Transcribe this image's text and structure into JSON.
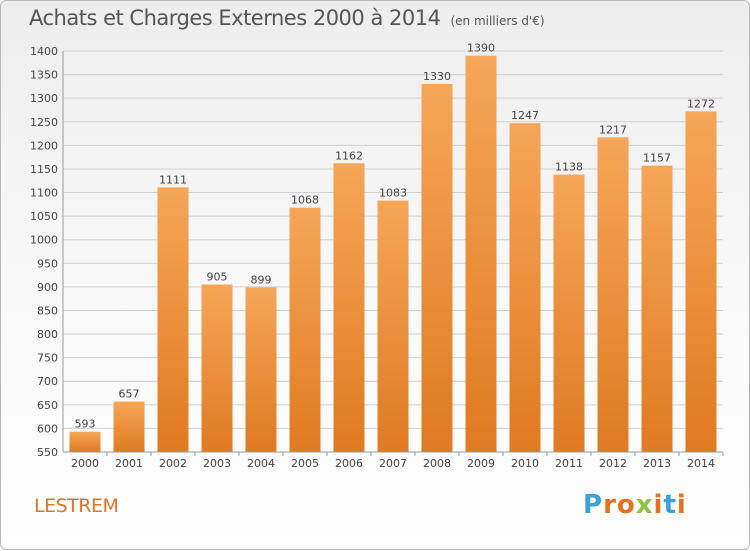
{
  "header": {
    "title": "Achats et Charges Externes 2000 à 2014",
    "unit": "(en milliers d'€)"
  },
  "footer": {
    "commune": "LESTREM",
    "logo_letters": [
      "P",
      "r",
      "o",
      "x",
      "i",
      "t",
      "i"
    ],
    "logo_colors": [
      "#3aa0d8",
      "#e8701e",
      "#e8701e",
      "#8cc63f",
      "#e8701e",
      "#3aa0d8",
      "#e8701e"
    ]
  },
  "colors": {
    "bar_top": "#f5a658",
    "bar_bottom": "#e07a22",
    "grid": "#d0d0d0"
  },
  "chart_data": {
    "type": "bar",
    "categories": [
      "2000",
      "2001",
      "2002",
      "2003",
      "2004",
      "2005",
      "2006",
      "2007",
      "2008",
      "2009",
      "2010",
      "2011",
      "2012",
      "2013",
      "2014"
    ],
    "values": [
      593,
      657,
      1111,
      905,
      899,
      1068,
      1162,
      1083,
      1330,
      1390,
      1247,
      1138,
      1217,
      1157,
      1272
    ],
    "data_labels": [
      "593",
      "657",
      "1111",
      "905",
      "899",
      "1068",
      "1162",
      "1083",
      "1330",
      "1390",
      "1247",
      "1138",
      "1217",
      "1157",
      "1272"
    ],
    "ylim": [
      550,
      1400
    ],
    "yticks": [
      550,
      600,
      650,
      700,
      750,
      800,
      850,
      900,
      950,
      1000,
      1050,
      1100,
      1150,
      1200,
      1250,
      1300,
      1350,
      1400
    ],
    "grid": true,
    "xlabel": "",
    "ylabel": ""
  }
}
